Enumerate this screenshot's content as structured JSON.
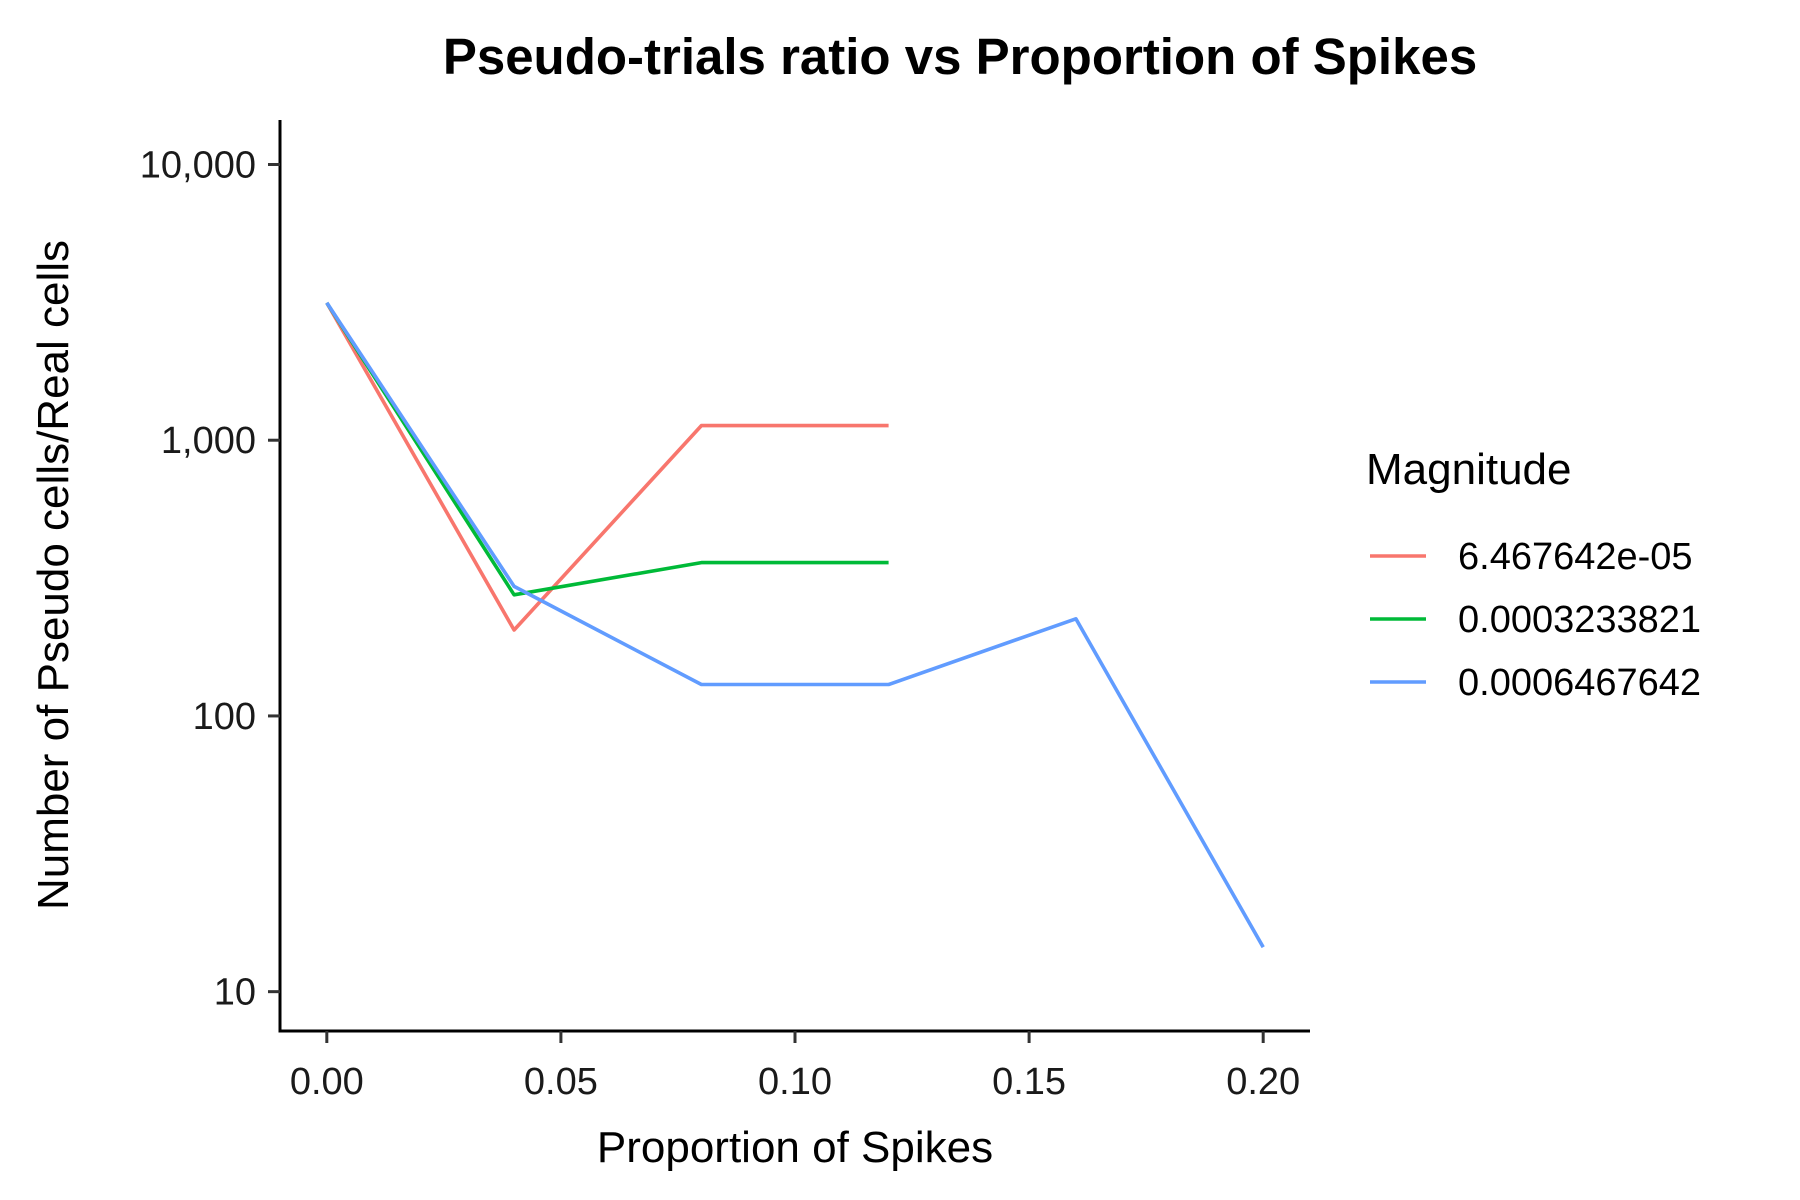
{
  "chart_data": {
    "type": "line",
    "title": "Pseudo-trials ratio vs Proportion of Spikes",
    "xlabel": "Proportion of Spikes",
    "ylabel": "Number of Pseudo cells/Real cells",
    "y_scale": "log10",
    "xlim": [
      -0.01,
      0.21
    ],
    "ylim": [
      7.2,
      14500
    ],
    "x_ticks": [
      0.0,
      0.05,
      0.1,
      0.15,
      0.2
    ],
    "x_tick_labels": [
      "0.00",
      "0.05",
      "0.10",
      "0.15",
      "0.20"
    ],
    "y_ticks": [
      10,
      100,
      1000,
      10000
    ],
    "y_tick_labels": [
      "10",
      "100",
      "1,000",
      "10,000"
    ],
    "grid": false,
    "legend": {
      "title": "Magnitude",
      "placement": "right"
    },
    "series": [
      {
        "name": "6.467642e-05",
        "color": "#F8766D",
        "x": [
          0.0,
          0.04,
          0.08,
          0.12
        ],
        "y": [
          3150,
          205,
          1130,
          1130
        ]
      },
      {
        "name": "0.0003233821",
        "color": "#00BA38",
        "x": [
          0.0,
          0.04,
          0.08,
          0.12
        ],
        "y": [
          3150,
          275,
          360,
          360
        ]
      },
      {
        "name": "0.0006467642",
        "color": "#619CFF",
        "x": [
          0.0,
          0.04,
          0.08,
          0.12,
          0.16,
          0.2
        ],
        "y": [
          3150,
          295,
          130,
          130,
          225,
          14.5
        ]
      }
    ]
  }
}
